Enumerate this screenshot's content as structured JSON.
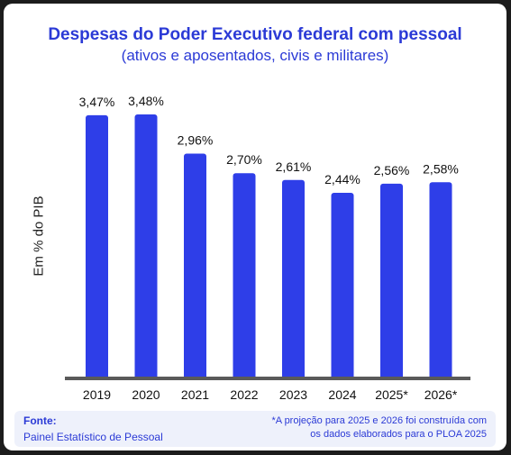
{
  "chart_data": {
    "type": "bar",
    "title": "Despesas do Poder Executivo federal com pessoal",
    "subtitle": "(ativos e aposentados, civis e militares)",
    "ylabel": "Em % do PIB",
    "xlabel": "",
    "categories": [
      "2019",
      "2020",
      "2021",
      "2022",
      "2023",
      "2024",
      "2025*",
      "2026*"
    ],
    "values": [
      3.47,
      3.48,
      2.96,
      2.7,
      2.61,
      2.44,
      2.56,
      2.58
    ],
    "value_labels": [
      "3,47%",
      "3,48%",
      "2,96%",
      "2,70%",
      "2,61%",
      "2,44%",
      "2,56%",
      "2,58%"
    ],
    "ylim": [
      0,
      3.48
    ],
    "grid": false,
    "colors": {
      "bar": "#2e3ee8",
      "baseline": "#5a5a5a",
      "accent": "#2b3ad6"
    }
  },
  "footer": {
    "source_label": "Fonte:",
    "source_value": "Painel Estatístico de Pessoal",
    "note_line1": "*A projeção para 2025 e 2026 foi construída com",
    "note_line2": "os dados elaborados para o PLOA 2025"
  }
}
